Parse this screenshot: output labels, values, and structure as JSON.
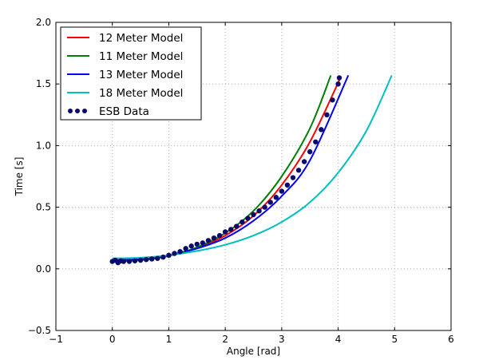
{
  "chart_data": {
    "type": "line",
    "xlabel": "Angle [rad]",
    "ylabel": "Time [s]",
    "xlim": [
      -1,
      6
    ],
    "ylim": [
      -0.5,
      2.0
    ],
    "xticks": [
      "−1",
      "0",
      "1",
      "2",
      "3",
      "4",
      "5",
      "6"
    ],
    "yticks": [
      "−0.5",
      "0.0",
      "0.5",
      "1.0",
      "1.5",
      "2.0"
    ],
    "grid": true,
    "legend": "top-left",
    "series": [
      {
        "name": "12 Meter Model",
        "kind": "line",
        "color": "#ff0000",
        "x": [
          0,
          0.5,
          1.0,
          1.5,
          2.0,
          2.5,
          3.0,
          3.5,
          4.05
        ],
        "y": [
          0.065,
          0.075,
          0.11,
          0.17,
          0.27,
          0.43,
          0.68,
          1.03,
          1.56
        ]
      },
      {
        "name": "11 Meter Model",
        "kind": "line",
        "color": "#008000",
        "x": [
          0,
          0.5,
          1.0,
          1.5,
          2.0,
          2.5,
          3.0,
          3.5,
          3.87
        ],
        "y": [
          0.06,
          0.07,
          0.105,
          0.175,
          0.29,
          0.47,
          0.75,
          1.14,
          1.57
        ]
      },
      {
        "name": "13 Meter Model",
        "kind": "line",
        "color": "#0000ff",
        "x": [
          0,
          0.5,
          1.0,
          1.5,
          2.0,
          2.5,
          3.0,
          3.5,
          4.18
        ],
        "y": [
          0.07,
          0.08,
          0.11,
          0.165,
          0.25,
          0.39,
          0.59,
          0.88,
          1.57
        ]
      },
      {
        "name": "18 Meter Model",
        "kind": "line",
        "color": "#00bfbf",
        "x": [
          0,
          0.5,
          1.0,
          1.5,
          2.0,
          2.5,
          3.0,
          3.5,
          4.0,
          4.5,
          4.95
        ],
        "y": [
          0.085,
          0.09,
          0.11,
          0.145,
          0.195,
          0.27,
          0.38,
          0.54,
          0.78,
          1.12,
          1.57
        ]
      },
      {
        "name": "ESB Data",
        "kind": "scatter",
        "color": "#0a0a6e",
        "x": [
          0.0,
          0.05,
          0.1,
          0.15,
          0.2,
          0.3,
          0.4,
          0.5,
          0.6,
          0.7,
          0.8,
          0.9,
          1.0,
          1.1,
          1.2,
          1.3,
          1.4,
          1.5,
          1.6,
          1.7,
          1.8,
          1.9,
          2.0,
          2.1,
          2.2,
          2.3,
          2.4,
          2.5,
          2.6,
          2.7,
          2.8,
          2.9,
          3.0,
          3.1,
          3.2,
          3.3,
          3.4,
          3.5,
          3.6,
          3.7,
          3.8,
          3.9,
          4.0,
          4.02
        ],
        "y": [
          0.06,
          0.07,
          0.05,
          0.065,
          0.06,
          0.06,
          0.065,
          0.07,
          0.075,
          0.08,
          0.085,
          0.095,
          0.11,
          0.125,
          0.14,
          0.165,
          0.185,
          0.2,
          0.21,
          0.23,
          0.25,
          0.27,
          0.3,
          0.32,
          0.345,
          0.38,
          0.41,
          0.44,
          0.47,
          0.5,
          0.54,
          0.58,
          0.63,
          0.68,
          0.74,
          0.8,
          0.87,
          0.95,
          1.03,
          1.13,
          1.25,
          1.37,
          1.5,
          1.55
        ]
      }
    ]
  }
}
